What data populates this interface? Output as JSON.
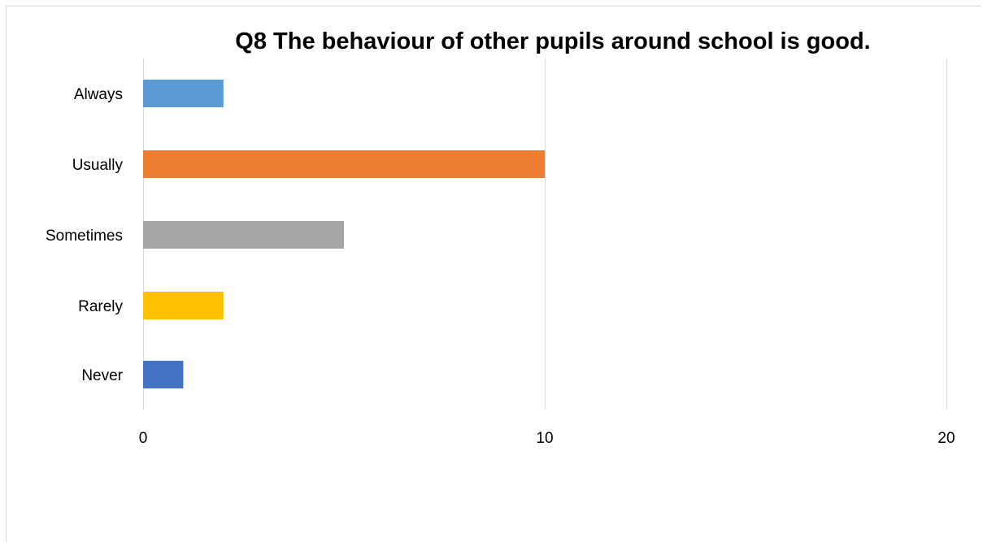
{
  "chart_data": {
    "type": "bar",
    "orientation": "horizontal",
    "title": "Q8 The behaviour of other pupils around school is good.",
    "categories": [
      "Always",
      "Usually",
      "Sometimes",
      "Rarely",
      "Never"
    ],
    "values": [
      2,
      10,
      5,
      2,
      1
    ],
    "colors": [
      "#5b9bd5",
      "#ed7d31",
      "#a5a5a5",
      "#ffc000",
      "#4472c4"
    ],
    "xlim": [
      0,
      20
    ],
    "xticks": [
      "0",
      "10",
      "20"
    ],
    "gridlines": "vertical",
    "legend": "none"
  }
}
